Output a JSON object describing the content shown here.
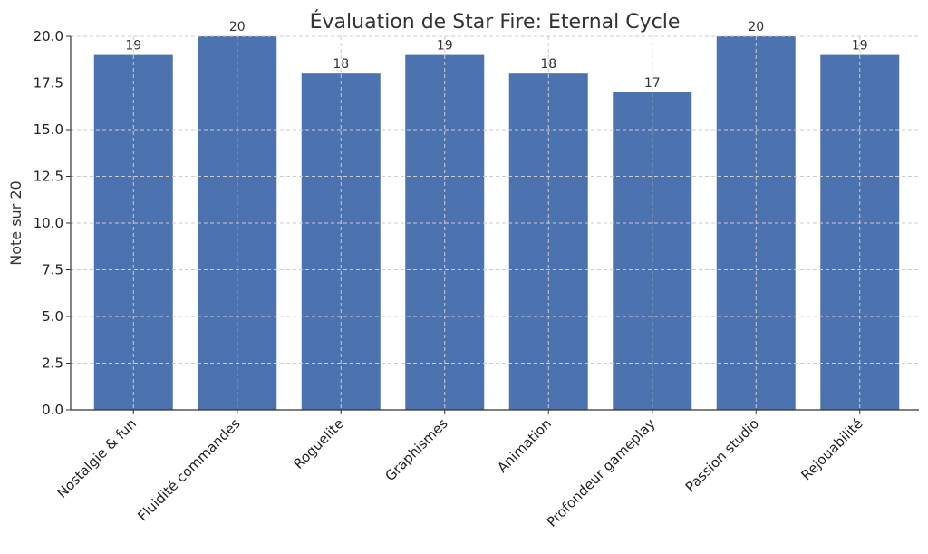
{
  "chart_data": {
    "type": "bar",
    "title": "Évaluation de Star Fire: Eternal Cycle",
    "xlabel": "",
    "ylabel": "Note sur 20",
    "categories": [
      "Nostalgie & fun",
      "Fluidité commandes",
      "Roguelite",
      "Graphismes",
      "Animation",
      "Profondeur gameplay",
      "Passion studio",
      "Rejouabilité"
    ],
    "values": [
      19,
      20,
      18,
      19,
      18,
      17,
      20,
      19
    ],
    "value_labels": [
      "19",
      "20",
      "18",
      "19",
      "18",
      "17",
      "20",
      "19"
    ],
    "ylim": [
      0,
      20
    ],
    "yticks": [
      0,
      2.5,
      5,
      7.5,
      10,
      12.5,
      15,
      17.5,
      20
    ],
    "ytick_labels": [
      "0.0",
      "2.5",
      "5.0",
      "7.5",
      "10.0",
      "12.5",
      "15.0",
      "17.5",
      "20.0"
    ],
    "grid": true,
    "bar_color": "#4c72b0"
  }
}
